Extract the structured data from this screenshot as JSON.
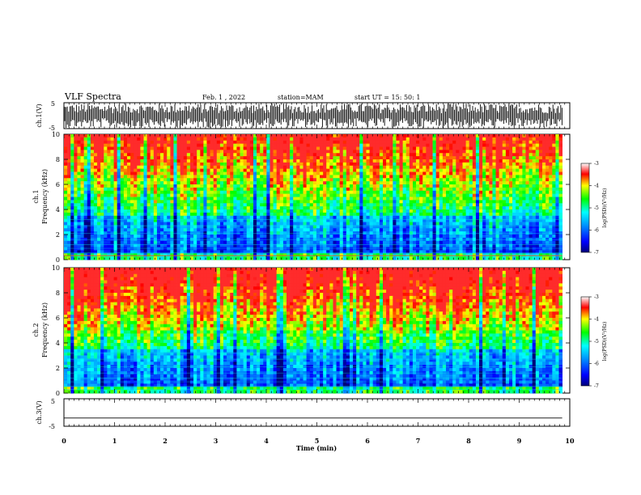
{
  "header": {
    "title": "VLF Spectra",
    "date": "Feb. 1 , 2022",
    "station": "station=MAM",
    "start": "start UT =  15: 50: 1"
  },
  "panels": {
    "ch1_wave": {
      "label": "ch.1(V)",
      "ticks": [
        "5",
        "-5"
      ]
    },
    "ch1_spec": {
      "label_line1": "ch.1",
      "label_line2": "Frequency (kHz)"
    },
    "ch2_spec": {
      "label_line1": "ch.2",
      "label_line2": "Frequency (kHz)"
    },
    "ch3_wave": {
      "label": "ch.3(V)",
      "ticks": [
        "5",
        "-5"
      ]
    }
  },
  "colorbar": {
    "label": "log(PSD)(V²/Hz)",
    "ticks": [
      "-3",
      "-4",
      "-5",
      "-6",
      "-7"
    ],
    "colors": [
      "#ff0000",
      "#ffff00",
      "#00ff00",
      "#00ffff",
      "#0000ff",
      "#000080"
    ]
  },
  "chart_data": [
    {
      "type": "line",
      "title": "ch.1(V)",
      "ylabel": "ch.1(V)",
      "ylim": [
        -5,
        5
      ],
      "xlim": [
        0,
        10
      ],
      "description_of_signal": "dense impulsive spikes spanning roughly -5 to 5 V"
    },
    {
      "type": "heatmap",
      "ylabel": "Frequency (kHz)",
      "xlim": [
        0,
        10
      ],
      "ylim": [
        0,
        10
      ],
      "yticks": [
        0,
        2,
        4,
        6,
        8,
        10
      ],
      "colorscale_range": [
        -7,
        -3
      ],
      "colorscale_label": "log(PSD)(V²/Hz)"
    },
    {
      "type": "heatmap",
      "ylabel": "Frequency (kHz)",
      "xlim": [
        0,
        10
      ],
      "ylim": [
        0,
        10
      ],
      "yticks": [
        0,
        2,
        4,
        6,
        8,
        10
      ],
      "colorscale_range": [
        -7,
        -3
      ],
      "colorscale_label": "log(PSD)(V²/Hz)"
    },
    {
      "type": "line",
      "ylabel": "ch.3(V)",
      "ylim": [
        -5,
        5
      ],
      "xlim": [
        0,
        10
      ],
      "x": [
        0,
        9.85
      ],
      "y": [
        -2,
        -2
      ]
    }
  ],
  "xaxis": {
    "label": "Time (min)",
    "ticks": [
      "0",
      "1",
      "2",
      "3",
      "4",
      "5",
      "6",
      "7",
      "8",
      "9",
      "10"
    ]
  },
  "freq_ticks": [
    "0",
    "2",
    "4",
    "6",
    "8",
    "10"
  ]
}
